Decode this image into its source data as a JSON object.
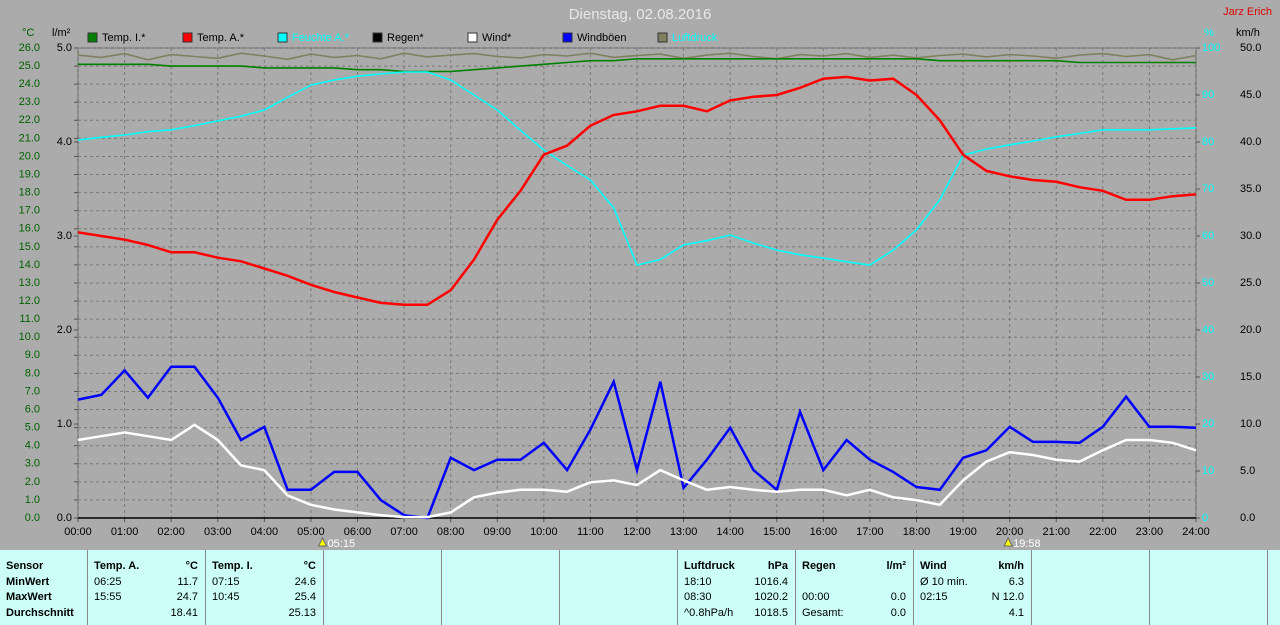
{
  "header": {
    "title": "Dienstag, 02.08.2016",
    "author": "Jarz Erich"
  },
  "chart_data": {
    "type": "line",
    "ylabel": "°C",
    "y2label": "l/m²",
    "y3label": "%",
    "y4label": "km/h",
    "xlim": [
      0,
      24
    ],
    "xticks": [
      {
        "value": 0,
        "label": "00:00"
      },
      {
        "value": 1,
        "label": "01:00"
      },
      {
        "value": 2,
        "label": "02:00"
      },
      {
        "value": 3,
        "label": "03:00"
      },
      {
        "value": 4,
        "label": "04:00"
      },
      {
        "value": 5,
        "label": "05:00"
      },
      {
        "value": 6,
        "label": "06:00"
      },
      {
        "value": 7,
        "label": "07:00"
      },
      {
        "value": 8,
        "label": "08:00"
      },
      {
        "value": 9,
        "label": "09:00"
      },
      {
        "value": 10,
        "label": "10:00"
      },
      {
        "value": 11,
        "label": "11:00"
      },
      {
        "value": 12,
        "label": "12:00"
      },
      {
        "value": 13,
        "label": "13:00"
      },
      {
        "value": 14,
        "label": "14:00"
      },
      {
        "value": 15,
        "label": "15:00"
      },
      {
        "value": 16,
        "label": "16:00"
      },
      {
        "value": 17,
        "label": "17:00"
      },
      {
        "value": 18,
        "label": "18:00"
      },
      {
        "value": 19,
        "label": "19:00"
      },
      {
        "value": 20,
        "label": "20:00"
      },
      {
        "value": 21,
        "label": "21:00"
      },
      {
        "value": 22,
        "label": "22:00"
      },
      {
        "value": 23,
        "label": "23:00"
      },
      {
        "value": 24,
        "label": "24:00"
      }
    ],
    "ylim": [
      0,
      26
    ],
    "yticks": [
      {
        "value": 0,
        "label": "0.0"
      },
      {
        "value": 1,
        "label": "1.0"
      },
      {
        "value": 2,
        "label": "2.0"
      },
      {
        "value": 3,
        "label": "3.0"
      },
      {
        "value": 4,
        "label": "4.0"
      },
      {
        "value": 5,
        "label": "5.0"
      },
      {
        "value": 6,
        "label": "6.0"
      },
      {
        "value": 7,
        "label": "7.0"
      },
      {
        "value": 8,
        "label": "8.0"
      },
      {
        "value": 9,
        "label": "9.0"
      },
      {
        "value": 10,
        "label": "10.0"
      },
      {
        "value": 11,
        "label": "11.0"
      },
      {
        "value": 12,
        "label": "12.0"
      },
      {
        "value": 13,
        "label": "13.0"
      },
      {
        "value": 14,
        "label": "14.0"
      },
      {
        "value": 15,
        "label": "15.0"
      },
      {
        "value": 16,
        "label": "16.0"
      },
      {
        "value": 17,
        "label": "17.0"
      },
      {
        "value": 18,
        "label": "18.0"
      },
      {
        "value": 19,
        "label": "19.0"
      },
      {
        "value": 20,
        "label": "20.0"
      },
      {
        "value": 21,
        "label": "21.0"
      },
      {
        "value": 22,
        "label": "22.0"
      },
      {
        "value": 23,
        "label": "23.0"
      },
      {
        "value": 24,
        "label": "24.0"
      },
      {
        "value": 25,
        "label": "25.0"
      },
      {
        "value": 26,
        "label": "26.0"
      }
    ],
    "y2lim": [
      0,
      5
    ],
    "y2ticks": [
      {
        "value": 0,
        "label": "0.0"
      },
      {
        "value": 1,
        "label": "1.0"
      },
      {
        "value": 2,
        "label": "2.0"
      },
      {
        "value": 3,
        "label": "3.0"
      },
      {
        "value": 4,
        "label": "4.0"
      },
      {
        "value": 5,
        "label": "5.0"
      }
    ],
    "y3lim": [
      0,
      100
    ],
    "y3ticks": [
      0,
      10,
      20,
      30,
      40,
      50,
      60,
      70,
      80,
      90,
      100
    ],
    "y4lim": [
      0,
      50
    ],
    "y4ticks": [
      {
        "value": 0,
        "label": "0.0"
      },
      {
        "value": 5,
        "label": "5.0"
      },
      {
        "value": 10,
        "label": "10.0"
      },
      {
        "value": 15,
        "label": "15.0"
      },
      {
        "value": 20,
        "label": "20.0"
      },
      {
        "value": 25,
        "label": "25.0"
      },
      {
        "value": 30,
        "label": "30.0"
      },
      {
        "value": 35,
        "label": "35.0"
      },
      {
        "value": 40,
        "label": "40.0"
      },
      {
        "value": 45,
        "label": "45.0"
      },
      {
        "value": 50,
        "label": "50.0"
      }
    ],
    "grid": true,
    "x": [
      0,
      0.5,
      1,
      1.5,
      2,
      2.5,
      3,
      3.5,
      4,
      4.5,
      5,
      5.5,
      6,
      6.5,
      7,
      7.5,
      8,
      8.5,
      9,
      9.5,
      10,
      10.5,
      11,
      11.5,
      12,
      12.5,
      13,
      13.5,
      14,
      14.5,
      15,
      15.5,
      16,
      16.5,
      17,
      17.5,
      18,
      18.5,
      19,
      19.5,
      20,
      20.5,
      21,
      21.5,
      22,
      22.5,
      23,
      23.5,
      24
    ],
    "series": [
      {
        "name": "Temp. I.*",
        "color": "#008000",
        "axis": "y",
        "values": [
          25.1,
          25.1,
          25.1,
          25.1,
          25.0,
          25.0,
          25.0,
          25.0,
          24.9,
          24.9,
          24.9,
          24.9,
          24.8,
          24.8,
          24.7,
          24.7,
          24.7,
          24.8,
          24.9,
          25.0,
          25.1,
          25.2,
          25.3,
          25.3,
          25.4,
          25.4,
          25.4,
          25.4,
          25.4,
          25.4,
          25.4,
          25.4,
          25.4,
          25.4,
          25.4,
          25.4,
          25.4,
          25.3,
          25.3,
          25.3,
          25.3,
          25.3,
          25.3,
          25.2,
          25.2,
          25.2,
          25.2,
          25.2,
          25.2
        ]
      },
      {
        "name": "Temp. A.*",
        "color": "#ff0000",
        "axis": "y",
        "values": [
          15.8,
          15.6,
          15.4,
          15.1,
          14.7,
          14.7,
          14.4,
          14.2,
          13.8,
          13.4,
          12.9,
          12.5,
          12.2,
          11.9,
          11.8,
          11.8,
          12.6,
          14.3,
          16.5,
          18.1,
          20.1,
          20.6,
          21.7,
          22.3,
          22.5,
          22.8,
          22.8,
          22.5,
          23.1,
          23.3,
          23.4,
          23.8,
          24.3,
          24.4,
          24.2,
          24.3,
          23.4,
          22.0,
          20.1,
          19.2,
          18.9,
          18.7,
          18.6,
          18.3,
          18.1,
          17.6,
          17.6,
          17.8,
          17.9
        ]
      },
      {
        "name": "Feuchte A.*",
        "color": "#00ffff",
        "axis": "y3",
        "values": [
          80.4,
          81.0,
          81.5,
          82.2,
          82.6,
          83.5,
          84.5,
          85.5,
          86.8,
          89.5,
          92.1,
          93.2,
          94.0,
          94.5,
          94.9,
          94.9,
          93.2,
          90.0,
          86.8,
          82.5,
          78.3,
          75.0,
          71.9,
          66.0,
          53.8,
          55.0,
          58.1,
          59.0,
          60.2,
          58.5,
          57.0,
          56.0,
          55.3,
          54.5,
          53.8,
          57.0,
          61.3,
          67.7,
          77.2,
          78.5,
          79.4,
          80.2,
          81.1,
          81.8,
          82.6,
          82.6,
          82.6,
          82.8,
          83.0
        ]
      },
      {
        "name": "Regen*",
        "color": "#000000",
        "axis": "y2",
        "values": [
          0,
          0,
          0,
          0,
          0,
          0,
          0,
          0,
          0,
          0,
          0,
          0,
          0,
          0,
          0,
          0,
          0,
          0,
          0,
          0,
          0,
          0,
          0,
          0,
          0,
          0,
          0,
          0,
          0,
          0,
          0,
          0,
          0,
          0,
          0,
          0,
          0,
          0,
          0,
          0,
          0,
          0,
          0,
          0,
          0,
          0,
          0,
          0,
          0
        ]
      },
      {
        "name": "Wind*",
        "color": "#ffffff",
        "axis": "y4",
        "values": [
          8.3,
          8.7,
          9.1,
          8.7,
          8.3,
          9.9,
          8.3,
          5.6,
          5.1,
          2.4,
          1.4,
          0.9,
          0.6,
          0.3,
          0.1,
          0.1,
          0.6,
          2.2,
          2.7,
          3.0,
          3.0,
          2.8,
          3.8,
          4.0,
          3.5,
          5.1,
          4.0,
          3.0,
          3.3,
          3.0,
          2.8,
          3.0,
          3.0,
          2.4,
          3.0,
          2.2,
          1.9,
          1.4,
          4.0,
          6.0,
          7.0,
          6.7,
          6.2,
          6.0,
          7.2,
          8.3,
          8.3,
          8.0,
          7.2
        ]
      },
      {
        "name": "Windböen",
        "color": "#0000ff",
        "axis": "y4",
        "values": [
          12.6,
          13.1,
          15.7,
          12.8,
          16.1,
          16.1,
          12.8,
          8.3,
          9.7,
          3.0,
          3.0,
          4.9,
          4.9,
          1.9,
          0.3,
          0,
          6.4,
          5.1,
          6.2,
          6.2,
          8.0,
          5.1,
          9.4,
          14.5,
          5.1,
          14.5,
          3.2,
          6.2,
          9.6,
          5.1,
          3.0,
          11.3,
          5.1,
          8.3,
          6.2,
          4.9,
          3.3,
          3.0,
          6.4,
          7.2,
          9.7,
          8.1,
          8.1,
          8.0,
          9.7,
          12.9,
          9.7,
          9.7,
          9.6
        ]
      },
      {
        "name": "Luftdruck",
        "color": "#808060",
        "axis": "y3",
        "values": [
          98.5,
          98.0,
          98.8,
          97.5,
          98.6,
          98.2,
          97.8,
          98.9,
          98.3,
          97.6,
          98.7,
          98.0,
          98.4,
          97.7,
          98.9,
          98.1,
          98.5,
          98.8,
          98.2,
          97.9,
          98.6,
          98.3,
          98.9,
          98.0,
          98.4,
          98.7,
          97.8,
          98.5,
          98.9,
          98.2,
          97.7,
          98.6,
          98.3,
          98.8,
          98.0,
          98.5,
          97.9,
          98.4,
          98.7,
          98.1,
          98.6,
          98.3,
          97.8,
          98.5,
          98.8,
          98.2,
          98.6,
          97.5,
          98.4
        ]
      }
    ],
    "annotations": [
      {
        "value": 5.25,
        "label": "05:15"
      },
      {
        "value": 19.967,
        "label": "19:58"
      }
    ]
  },
  "table": {
    "corner": "Sensor",
    "row_labels": [
      "MinWert",
      "MaxWert",
      "Durchschnitt"
    ],
    "panels": [
      {
        "title": "Temp. A.",
        "unit": "°C",
        "rows": [
          [
            "06:25",
            "11.7"
          ],
          [
            "15:55",
            "24.7"
          ],
          [
            null,
            "18.41"
          ]
        ]
      },
      {
        "title": "Temp. I.",
        "unit": "°C",
        "rows": [
          [
            "07:15",
            "24.6"
          ],
          [
            "10:45",
            "25.4"
          ],
          [
            null,
            "25.13"
          ]
        ]
      },
      {
        "title": "Luftdruck",
        "unit": "hPa",
        "rows": [
          [
            "18:10",
            "1016.4"
          ],
          [
            "08:30",
            "1020.2"
          ],
          [
            "^0.8hPa/h",
            "1018.5"
          ]
        ]
      },
      {
        "title": "Regen",
        "unit": "l/m²",
        "rows": [
          [
            null,
            null
          ],
          [
            "00:00",
            "0.0"
          ],
          [
            "Gesamt:",
            "0.0"
          ]
        ]
      },
      {
        "title": "Wind",
        "unit": "km/h",
        "rows": [
          [
            "Ø 10 min.",
            "6.3"
          ],
          [
            "02:15",
            "N 12.0"
          ],
          [
            null,
            "4.1"
          ]
        ]
      }
    ]
  }
}
